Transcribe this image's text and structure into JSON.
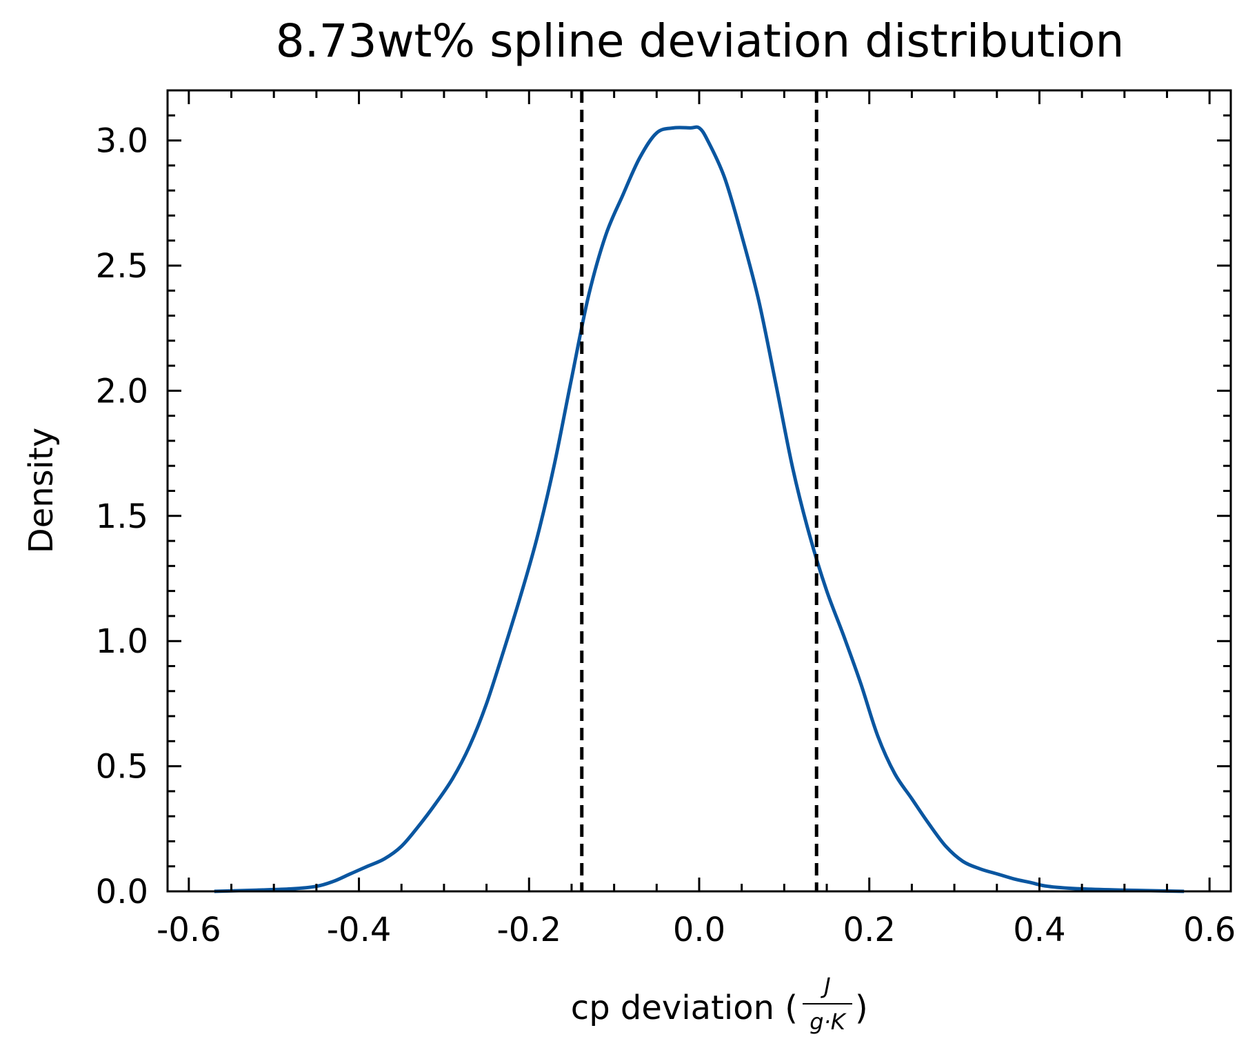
{
  "chart_data": {
    "type": "line",
    "title": "8.73wt% spline deviation distribution",
    "xlabel": "cp deviation (",
    "xlabel_unit_numerator": "J",
    "xlabel_unit_denominator": "g·K",
    "xlabel_close": ")",
    "ylabel": "Density",
    "xlim": [
      -0.625,
      0.625
    ],
    "ylim": [
      0,
      3.2
    ],
    "xticks": [
      -0.6,
      -0.4,
      -0.2,
      0.0,
      0.2,
      0.4,
      0.6
    ],
    "xtick_labels": [
      "-0.6",
      "-0.4",
      "-0.2",
      "0.0",
      "0.2",
      "0.4",
      "0.6"
    ],
    "yticks": [
      0.0,
      0.5,
      1.0,
      1.5,
      2.0,
      2.5,
      3.0
    ],
    "ytick_labels": [
      "0.0",
      "0.5",
      "1.0",
      "1.5",
      "2.0",
      "2.5",
      "3.0"
    ],
    "x_minor_step": 0.05,
    "y_minor_step": 0.1,
    "grid": false,
    "series": [
      {
        "color": "#0a56a0",
        "x": [
          -0.57,
          -0.52,
          -0.48,
          -0.45,
          -0.43,
          -0.41,
          -0.39,
          -0.37,
          -0.35,
          -0.33,
          -0.31,
          -0.29,
          -0.27,
          -0.25,
          -0.23,
          -0.21,
          -0.19,
          -0.17,
          -0.15,
          -0.13,
          -0.11,
          -0.09,
          -0.07,
          -0.05,
          -0.03,
          -0.01,
          0.0,
          0.01,
          0.03,
          0.05,
          0.07,
          0.09,
          0.11,
          0.13,
          0.15,
          0.17,
          0.19,
          0.21,
          0.23,
          0.25,
          0.27,
          0.29,
          0.31,
          0.33,
          0.35,
          0.37,
          0.39,
          0.41,
          0.45,
          0.5,
          0.57
        ],
        "y": [
          0.0,
          0.005,
          0.01,
          0.02,
          0.04,
          0.07,
          0.1,
          0.13,
          0.18,
          0.26,
          0.35,
          0.45,
          0.58,
          0.75,
          0.96,
          1.18,
          1.42,
          1.71,
          2.05,
          2.38,
          2.62,
          2.78,
          2.93,
          3.03,
          3.05,
          3.05,
          3.05,
          3.0,
          2.85,
          2.62,
          2.36,
          2.03,
          1.69,
          1.42,
          1.2,
          1.02,
          0.83,
          0.62,
          0.47,
          0.37,
          0.27,
          0.18,
          0.12,
          0.09,
          0.07,
          0.05,
          0.035,
          0.02,
          0.01,
          0.005,
          0.0
        ]
      }
    ],
    "vlines": [
      {
        "x": -0.138,
        "style": "dashed",
        "color": "#000000"
      },
      {
        "x": 0.138,
        "style": "dashed",
        "color": "#000000"
      }
    ]
  }
}
